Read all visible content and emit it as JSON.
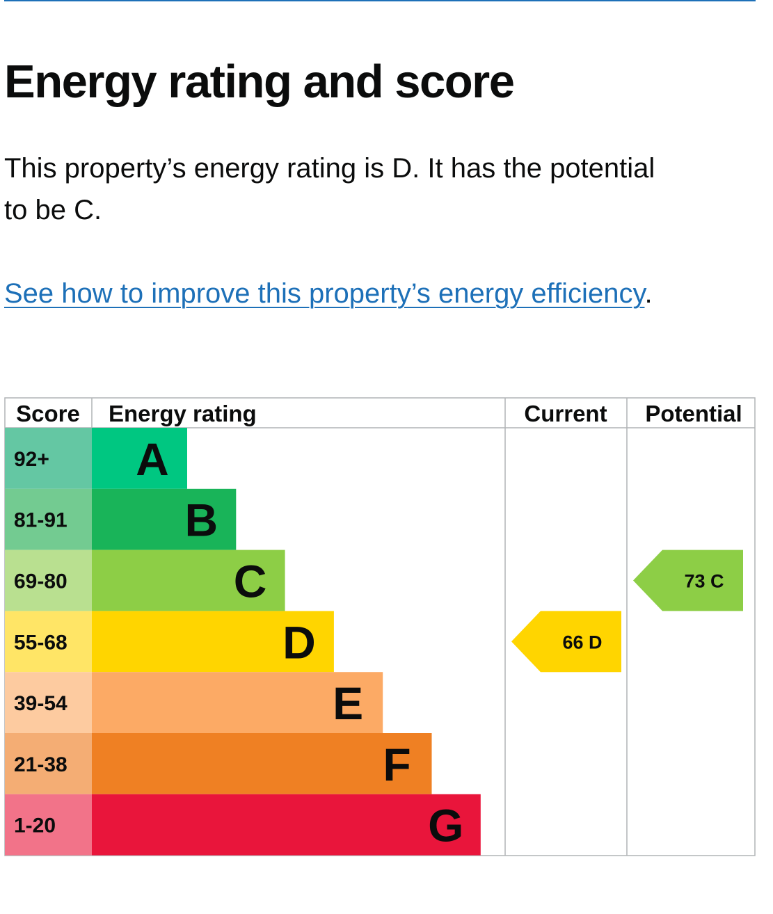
{
  "page": {
    "heading": "Energy rating and score",
    "intro": "This property’s energy rating is D. It has the potential to be C.",
    "improve_link": "See how to improve this property’s energy efficiency",
    "improve_suffix": "."
  },
  "chart_data": {
    "type": "table",
    "headers": {
      "score": "Score",
      "rating": "Energy rating",
      "current": "Current",
      "potential": "Potential"
    },
    "bands": [
      {
        "letter": "A",
        "range": "92+",
        "color": "#00c781",
        "score_color": "#64c7a3"
      },
      {
        "letter": "B",
        "range": "81-91",
        "color": "#19b459",
        "score_color": "#73cb91"
      },
      {
        "letter": "C",
        "range": "69-80",
        "color": "#8dce46",
        "score_color": "#b9e090"
      },
      {
        "letter": "D",
        "range": "55-68",
        "color": "#ffd500",
        "score_color": "#ffe566"
      },
      {
        "letter": "E",
        "range": "39-54",
        "color": "#fcaa65",
        "score_color": "#fdcba0"
      },
      {
        "letter": "F",
        "range": "21-38",
        "color": "#ef8023",
        "score_color": "#f4ad74"
      },
      {
        "letter": "G",
        "range": "1-20",
        "color": "#e9153b",
        "score_color": "#f27389"
      }
    ],
    "current": {
      "score": 66,
      "letter": "D",
      "color": "#ffd500"
    },
    "potential": {
      "score": 73,
      "letter": "C",
      "color": "#8dce46"
    }
  }
}
